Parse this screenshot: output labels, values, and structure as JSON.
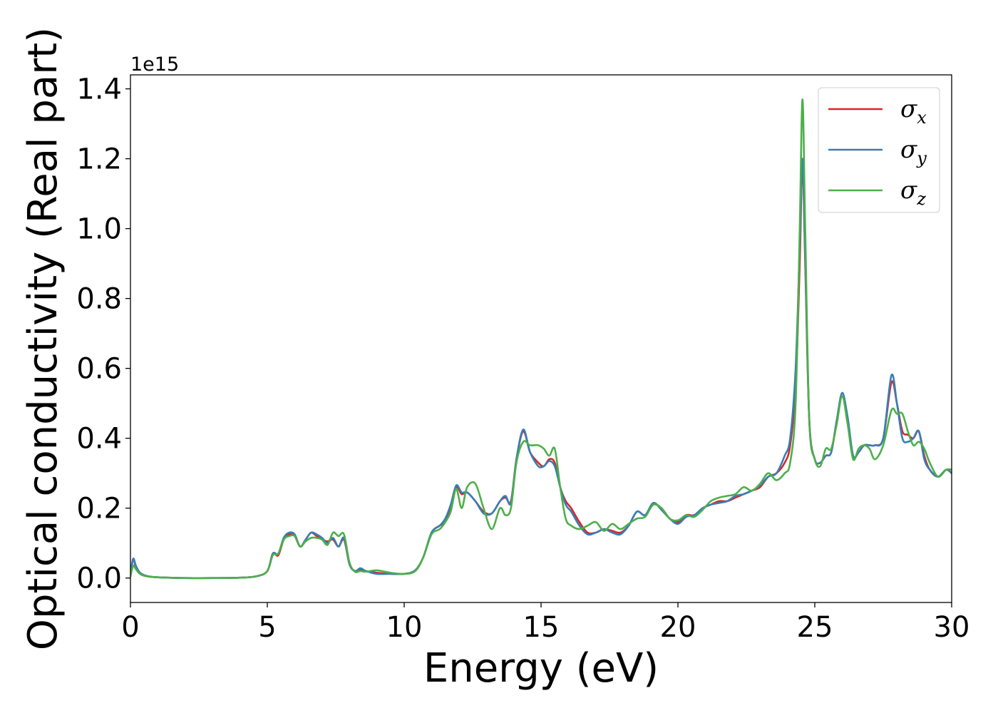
{
  "chart_data": {
    "type": "line",
    "title": "",
    "xlabel": "Energy (eV)",
    "ylabel": "Optical conductivity (Real part)",
    "y_offset_label": "1e15",
    "xlim": [
      0,
      30
    ],
    "ylim": [
      -0.07,
      1.44
    ],
    "x_ticks": [
      0,
      5,
      10,
      15,
      20,
      25,
      30
    ],
    "y_ticks": [
      0.0,
      0.2,
      0.4,
      0.6,
      0.8,
      1.0,
      1.2,
      1.4
    ],
    "x_tick_labels": [
      "0",
      "5",
      "10",
      "15",
      "20",
      "25",
      "30"
    ],
    "y_tick_labels": [
      "0.0",
      "0.2",
      "0.4",
      "0.6",
      "0.8",
      "1.0",
      "1.2",
      "1.4"
    ],
    "grid": false,
    "legend_position": "upper right",
    "series": [
      {
        "name": "σx",
        "name_base": "σ",
        "name_sub": "x",
        "color": "#d62728",
        "x": [
          0,
          0.1,
          0.2,
          0.35,
          0.6,
          1,
          2,
          3,
          4,
          4.6,
          5,
          5.2,
          5.4,
          5.6,
          5.8,
          6,
          6.2,
          6.4,
          6.6,
          6.8,
          7,
          7.2,
          7.4,
          7.6,
          7.8,
          8,
          8.2,
          8.4,
          8.6,
          9,
          9.5,
          10,
          10.4,
          10.7,
          11,
          11.3,
          11.5,
          11.7,
          11.9,
          12.1,
          12.3,
          12.6,
          12.9,
          13.2,
          13.5,
          13.7,
          13.9,
          14.1,
          14.35,
          14.6,
          14.9,
          15.1,
          15.3,
          15.5,
          15.7,
          15.9,
          16.1,
          16.4,
          16.7,
          17,
          17.3,
          17.6,
          17.9,
          18.2,
          18.5,
          18.8,
          19.1,
          19.4,
          19.7,
          20,
          20.3,
          20.6,
          20.9,
          21.2,
          21.5,
          21.8,
          22.1,
          22.4,
          22.7,
          23,
          23.3,
          23.6,
          23.9,
          24.1,
          24.3,
          24.45,
          24.55,
          24.65,
          24.8,
          25,
          25.2,
          25.4,
          25.6,
          25.8,
          26,
          26.2,
          26.4,
          26.6,
          26.8,
          27,
          27.2,
          27.5,
          27.8,
          28,
          28.2,
          28.4,
          28.6,
          28.8,
          29,
          29.2,
          29.5,
          29.8,
          30
        ],
        "y": [
          0.005,
          0.055,
          0.03,
          0.012,
          0.005,
          0.002,
          0.0,
          0.0,
          0.001,
          0.005,
          0.02,
          0.07,
          0.065,
          0.11,
          0.125,
          0.12,
          0.09,
          0.11,
          0.13,
          0.12,
          0.11,
          0.105,
          0.11,
          0.09,
          0.11,
          0.04,
          0.02,
          0.025,
          0.02,
          0.015,
          0.012,
          0.012,
          0.02,
          0.06,
          0.13,
          0.15,
          0.16,
          0.2,
          0.26,
          0.24,
          0.245,
          0.22,
          0.19,
          0.185,
          0.22,
          0.23,
          0.22,
          0.34,
          0.42,
          0.36,
          0.33,
          0.32,
          0.34,
          0.33,
          0.26,
          0.22,
          0.2,
          0.16,
          0.13,
          0.13,
          0.14,
          0.135,
          0.13,
          0.15,
          0.19,
          0.18,
          0.21,
          0.2,
          0.17,
          0.16,
          0.18,
          0.18,
          0.2,
          0.21,
          0.22,
          0.22,
          0.23,
          0.24,
          0.25,
          0.26,
          0.29,
          0.3,
          0.33,
          0.38,
          0.55,
          0.9,
          1.19,
          0.9,
          0.45,
          0.34,
          0.33,
          0.35,
          0.36,
          0.45,
          0.52,
          0.45,
          0.35,
          0.36,
          0.38,
          0.38,
          0.38,
          0.4,
          0.56,
          0.5,
          0.42,
          0.41,
          0.4,
          0.42,
          0.35,
          0.31,
          0.29,
          0.31,
          0.3
        ]
      },
      {
        "name": "σy",
        "name_base": "σ",
        "name_sub": "y",
        "color": "#377eb8",
        "x": [
          0,
          0.1,
          0.2,
          0.35,
          0.6,
          1,
          2,
          3,
          4,
          4.6,
          5,
          5.2,
          5.4,
          5.6,
          5.8,
          6,
          6.2,
          6.4,
          6.6,
          6.8,
          7,
          7.2,
          7.4,
          7.6,
          7.8,
          8,
          8.2,
          8.4,
          8.6,
          9,
          9.5,
          10,
          10.4,
          10.7,
          11,
          11.3,
          11.5,
          11.7,
          11.9,
          12.1,
          12.3,
          12.6,
          12.9,
          13.2,
          13.5,
          13.7,
          13.9,
          14.1,
          14.35,
          14.6,
          14.9,
          15.1,
          15.3,
          15.5,
          15.7,
          15.9,
          16.1,
          16.4,
          16.7,
          17,
          17.3,
          17.6,
          17.9,
          18.2,
          18.5,
          18.8,
          19.1,
          19.4,
          19.7,
          20,
          20.3,
          20.6,
          20.9,
          21.2,
          21.5,
          21.8,
          22.1,
          22.4,
          22.7,
          23,
          23.3,
          23.6,
          23.9,
          24.1,
          24.3,
          24.45,
          24.55,
          24.65,
          24.8,
          25,
          25.2,
          25.4,
          25.6,
          25.8,
          26,
          26.2,
          26.4,
          26.6,
          26.8,
          27,
          27.2,
          27.5,
          27.8,
          28,
          28.2,
          28.4,
          28.6,
          28.8,
          29,
          29.2,
          29.5,
          29.8,
          30
        ],
        "y": [
          0.01,
          0.055,
          0.035,
          0.015,
          0.006,
          0.002,
          0.0,
          0.0,
          0.001,
          0.005,
          0.02,
          0.07,
          0.07,
          0.115,
          0.13,
          0.125,
          0.09,
          0.11,
          0.13,
          0.125,
          0.115,
          0.1,
          0.115,
          0.09,
          0.115,
          0.04,
          0.02,
          0.028,
          0.02,
          0.012,
          0.012,
          0.012,
          0.022,
          0.06,
          0.13,
          0.15,
          0.17,
          0.21,
          0.265,
          0.245,
          0.245,
          0.22,
          0.185,
          0.185,
          0.22,
          0.235,
          0.215,
          0.34,
          0.425,
          0.36,
          0.32,
          0.32,
          0.335,
          0.32,
          0.26,
          0.21,
          0.19,
          0.15,
          0.125,
          0.13,
          0.14,
          0.13,
          0.125,
          0.15,
          0.19,
          0.18,
          0.215,
          0.195,
          0.17,
          0.155,
          0.175,
          0.18,
          0.2,
          0.21,
          0.215,
          0.22,
          0.235,
          0.24,
          0.25,
          0.265,
          0.29,
          0.3,
          0.35,
          0.4,
          0.6,
          0.95,
          1.2,
          0.92,
          0.45,
          0.34,
          0.33,
          0.35,
          0.36,
          0.45,
          0.53,
          0.46,
          0.35,
          0.36,
          0.38,
          0.38,
          0.38,
          0.4,
          0.58,
          0.5,
          0.4,
          0.39,
          0.4,
          0.42,
          0.34,
          0.31,
          0.29,
          0.31,
          0.3
        ]
      },
      {
        "name": "σz",
        "name_base": "σ",
        "name_sub": "z",
        "color": "#4daf4a",
        "x": [
          0,
          0.1,
          0.2,
          0.35,
          0.6,
          1,
          2,
          3,
          4,
          4.6,
          5,
          5.2,
          5.4,
          5.6,
          5.8,
          6,
          6.2,
          6.4,
          6.6,
          6.8,
          7,
          7.2,
          7.4,
          7.6,
          7.8,
          8,
          8.2,
          8.4,
          8.6,
          9,
          9.5,
          10,
          10.4,
          10.7,
          11,
          11.3,
          11.5,
          11.7,
          11.9,
          12.1,
          12.3,
          12.6,
          12.9,
          13.2,
          13.5,
          13.7,
          13.9,
          14.1,
          14.35,
          14.6,
          14.9,
          15.1,
          15.3,
          15.5,
          15.7,
          15.9,
          16.1,
          16.4,
          16.7,
          17,
          17.3,
          17.6,
          17.9,
          18.2,
          18.5,
          18.8,
          19.1,
          19.4,
          19.7,
          20,
          20.3,
          20.6,
          20.9,
          21.2,
          21.5,
          21.8,
          22.1,
          22.4,
          22.7,
          23,
          23.3,
          23.6,
          23.9,
          24.1,
          24.3,
          24.45,
          24.55,
          24.65,
          24.8,
          25,
          25.2,
          25.4,
          25.6,
          25.8,
          26,
          26.2,
          26.4,
          26.6,
          26.8,
          27,
          27.2,
          27.5,
          27.8,
          28,
          28.2,
          28.4,
          28.6,
          28.8,
          29,
          29.2,
          29.5,
          29.8,
          30
        ],
        "y": [
          0.005,
          0.035,
          0.025,
          0.012,
          0.005,
          0.002,
          0.0,
          0.0,
          0.001,
          0.005,
          0.02,
          0.065,
          0.07,
          0.11,
          0.12,
          0.12,
          0.09,
          0.105,
          0.115,
          0.115,
          0.11,
          0.095,
          0.13,
          0.12,
          0.125,
          0.045,
          0.018,
          0.02,
          0.018,
          0.022,
          0.015,
          0.012,
          0.02,
          0.06,
          0.125,
          0.14,
          0.16,
          0.19,
          0.255,
          0.2,
          0.26,
          0.27,
          0.2,
          0.14,
          0.2,
          0.18,
          0.2,
          0.33,
          0.39,
          0.38,
          0.38,
          0.37,
          0.35,
          0.37,
          0.26,
          0.17,
          0.15,
          0.14,
          0.15,
          0.16,
          0.135,
          0.155,
          0.14,
          0.155,
          0.17,
          0.175,
          0.21,
          0.2,
          0.17,
          0.165,
          0.18,
          0.175,
          0.195,
          0.22,
          0.23,
          0.235,
          0.24,
          0.26,
          0.25,
          0.27,
          0.3,
          0.28,
          0.3,
          0.33,
          0.5,
          1.0,
          1.37,
          1.0,
          0.45,
          0.34,
          0.32,
          0.37,
          0.37,
          0.44,
          0.52,
          0.44,
          0.34,
          0.37,
          0.38,
          0.37,
          0.34,
          0.38,
          0.48,
          0.47,
          0.47,
          0.42,
          0.38,
          0.39,
          0.37,
          0.33,
          0.29,
          0.31,
          0.31
        ]
      }
    ]
  }
}
